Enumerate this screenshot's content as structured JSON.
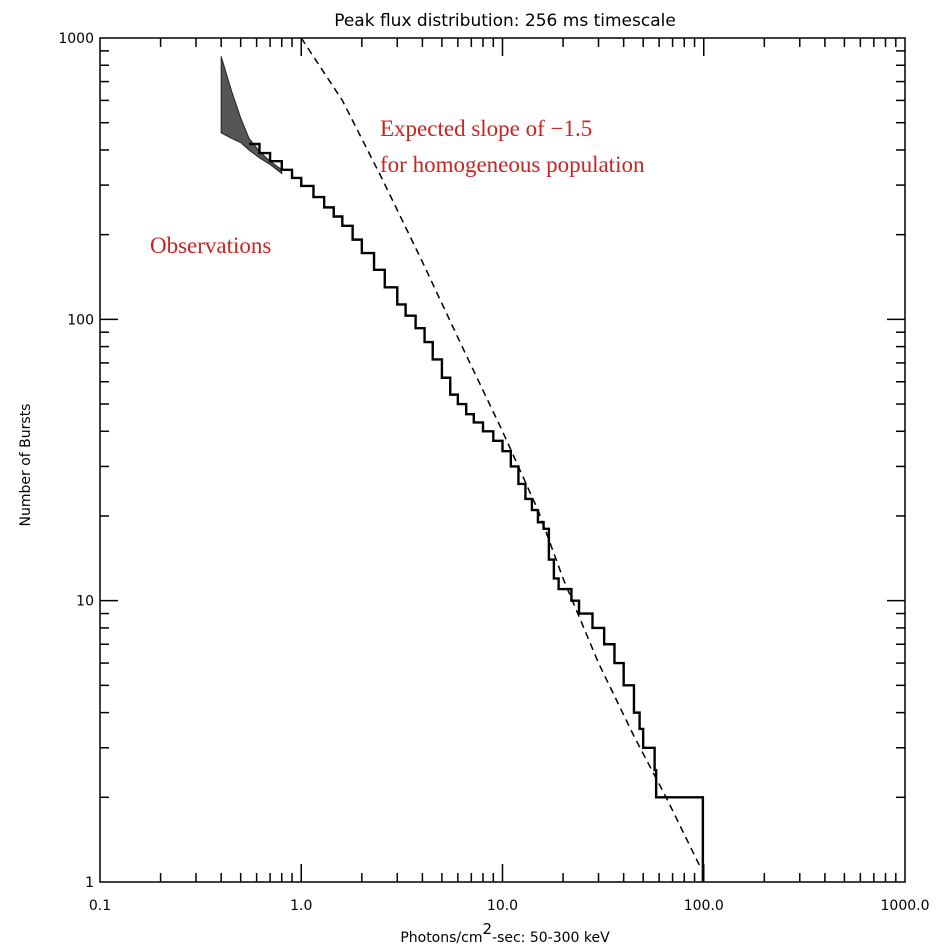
{
  "chart_data": {
    "type": "line",
    "title": "Peak flux distribution: 256 ms timescale",
    "xlabel": "Photons/cm²-sec: 50-300 keV",
    "xlabel_main": "Photons/cm",
    "xlabel_sup": "2",
    "xlabel_rest": "-sec:  50-300 keV",
    "ylabel": "Number of Bursts",
    "xscale": "log",
    "yscale": "log",
    "xlim": [
      0.1,
      1000
    ],
    "ylim": [
      1,
      1000
    ],
    "x_ticks": [
      0.1,
      1,
      10,
      100,
      1000
    ],
    "x_tick_labels": [
      "0.1",
      "1.0",
      "10.0",
      "100.0",
      "1000.0"
    ],
    "y_ticks": [
      1,
      10,
      100,
      1000
    ],
    "y_tick_labels": [
      "1",
      "10",
      "100",
      "1000"
    ],
    "annotations": [
      {
        "id": "annot-observations",
        "lines": [
          "Observations"
        ],
        "color": "#cc2222"
      },
      {
        "id": "annot-expected",
        "lines": [
          "Expected slope of −1.5",
          "for homogeneous population"
        ],
        "color": "#cc2222"
      }
    ],
    "series": [
      {
        "name": "Observations",
        "style": "solid-step",
        "color": "#000000",
        "points": [
          [
            0.55,
            420
          ],
          [
            0.62,
            390
          ],
          [
            0.7,
            365
          ],
          [
            0.8,
            340
          ],
          [
            0.9,
            318
          ],
          [
            1.0,
            298
          ],
          [
            1.15,
            272
          ],
          [
            1.3,
            250
          ],
          [
            1.45,
            232
          ],
          [
            1.6,
            215
          ],
          [
            1.8,
            192
          ],
          [
            2.0,
            172
          ],
          [
            2.3,
            150
          ],
          [
            2.6,
            130
          ],
          [
            3.0,
            113
          ],
          [
            3.3,
            103
          ],
          [
            3.7,
            93
          ],
          [
            4.1,
            83
          ],
          [
            4.5,
            72
          ],
          [
            5.0,
            62
          ],
          [
            5.5,
            54
          ],
          [
            6.0,
            50
          ],
          [
            6.6,
            46
          ],
          [
            7.2,
            43
          ],
          [
            8.0,
            40
          ],
          [
            9.0,
            37
          ],
          [
            10.0,
            34
          ],
          [
            11.0,
            30
          ],
          [
            12.0,
            26
          ],
          [
            13.0,
            23
          ],
          [
            14.0,
            21
          ],
          [
            15.0,
            19
          ],
          [
            16.0,
            18
          ],
          [
            17.0,
            14
          ],
          [
            18.0,
            12
          ],
          [
            19.0,
            11
          ],
          [
            21.0,
            11
          ],
          [
            22.0,
            10
          ],
          [
            24.0,
            9
          ],
          [
            27.0,
            9
          ],
          [
            28.0,
            8
          ],
          [
            32.0,
            7
          ],
          [
            36.0,
            6
          ],
          [
            40.0,
            5
          ],
          [
            45.0,
            4
          ],
          [
            48.0,
            3.5
          ],
          [
            50.0,
            3
          ],
          [
            56.0,
            3
          ],
          [
            57.0,
            2.5
          ],
          [
            58.0,
            2
          ],
          [
            99.0,
            2
          ],
          [
            99.0,
            1
          ]
        ]
      },
      {
        "name": "Expected slope of −1.5",
        "style": "dashed",
        "color": "#000000",
        "points": [
          [
            1.0,
            1000
          ],
          [
            1.6,
            600
          ],
          [
            2.5,
            320
          ],
          [
            4.0,
            160
          ],
          [
            6.3,
            80
          ],
          [
            10.0,
            40
          ],
          [
            15.0,
            21
          ],
          [
            20.0,
            12
          ],
          [
            30.0,
            6
          ],
          [
            45.0,
            3.3
          ],
          [
            65.0,
            2.0
          ],
          [
            95.0,
            1.15
          ]
        ]
      }
    ],
    "uncertainty_band": {
      "x": [
        0.4,
        0.45,
        0.5,
        0.55,
        0.62,
        0.7,
        0.8
      ],
      "y_low": [
        460,
        440,
        425,
        400,
        375,
        355,
        330
      ],
      "y_high": [
        860,
        650,
        520,
        440,
        395,
        365,
        340
      ],
      "color": "#555555"
    }
  }
}
